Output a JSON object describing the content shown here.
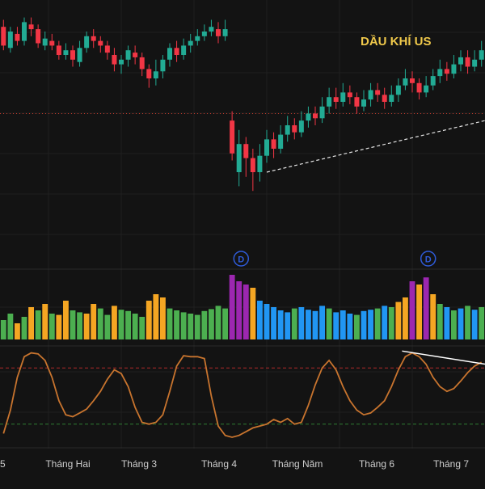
{
  "title": "DẦU KHÍ US",
  "colors": {
    "background": "#131313",
    "grid": "#1f1f1f",
    "up": "#22ab94",
    "down": "#f23645",
    "title": "#f0c94b",
    "axis_text": "#cfcfcf",
    "price_level": "#c0392b",
    "trendline": "#e6e6e6",
    "oscillator": "#c8742e",
    "osc_upper": "#b02a2a",
    "osc_lower": "#2e7d32",
    "osc_trend": "#ffffff",
    "vol_green": "#4caf50",
    "vol_orange": "#f5a623",
    "vol_blue": "#2196f3",
    "vol_purple": "#9c27b0",
    "dividend": "#2f5bd8"
  },
  "dividend_marker": "D",
  "x_axis_labels": [
    "5",
    "Tháng Hai",
    "Tháng 3",
    "Tháng 4",
    "Tháng Năm",
    "Tháng 6",
    "Tháng 7"
  ],
  "chart_data": {
    "type": "candlestick",
    "title": "DẦU KHÍ US",
    "price_ylim": [
      0,
      100
    ],
    "candles": [
      [
        92,
        84,
        95,
        82
      ],
      [
        83,
        90,
        92,
        81
      ],
      [
        89,
        86,
        92,
        84
      ],
      [
        86,
        94,
        96,
        84
      ],
      [
        93,
        91,
        96,
        88
      ],
      [
        91,
        85,
        93,
        83
      ],
      [
        84,
        87,
        90,
        82
      ],
      [
        86,
        84,
        89,
        82
      ],
      [
        84,
        80,
        86,
        78
      ],
      [
        80,
        82,
        85,
        78
      ],
      [
        82,
        78,
        84,
        75
      ],
      [
        77,
        83,
        86,
        75
      ],
      [
        83,
        88,
        90,
        81
      ],
      [
        88,
        86,
        91,
        83
      ],
      [
        86,
        84,
        88,
        81
      ],
      [
        84,
        81,
        86,
        78
      ],
      [
        80,
        76,
        83,
        73
      ],
      [
        76,
        78,
        80,
        72
      ],
      [
        78,
        82,
        84,
        75
      ],
      [
        81,
        79,
        84,
        76
      ],
      [
        79,
        74,
        81,
        71
      ],
      [
        74,
        70,
        76,
        66
      ],
      [
        70,
        73,
        78,
        67
      ],
      [
        73,
        78,
        80,
        70
      ],
      [
        78,
        83,
        85,
        75
      ],
      [
        83,
        80,
        86,
        77
      ],
      [
        80,
        84,
        87,
        78
      ],
      [
        84,
        86,
        89,
        81
      ],
      [
        86,
        88,
        91,
        84
      ],
      [
        88,
        90,
        93,
        86
      ],
      [
        90,
        92,
        95,
        88
      ],
      [
        91,
        88,
        94,
        85
      ],
      [
        88,
        91,
        95,
        86
      ],
      [
        52,
        38,
        56,
        35
      ],
      [
        30,
        42,
        48,
        24
      ],
      [
        42,
        36,
        45,
        28
      ],
      [
        36,
        30,
        40,
        22
      ],
      [
        30,
        37,
        42,
        26
      ],
      [
        37,
        44,
        48,
        34
      ],
      [
        44,
        40,
        47,
        36
      ],
      [
        40,
        46,
        50,
        38
      ],
      [
        46,
        50,
        54,
        43
      ],
      [
        50,
        47,
        53,
        44
      ],
      [
        47,
        52,
        56,
        45
      ],
      [
        52,
        55,
        58,
        49
      ],
      [
        55,
        53,
        58,
        50
      ],
      [
        53,
        58,
        62,
        51
      ],
      [
        58,
        62,
        66,
        55
      ],
      [
        62,
        60,
        66,
        57
      ],
      [
        60,
        64,
        68,
        58
      ],
      [
        64,
        62,
        67,
        59
      ],
      [
        62,
        58,
        64,
        55
      ],
      [
        58,
        61,
        65,
        56
      ],
      [
        61,
        65,
        68,
        58
      ],
      [
        65,
        63,
        68,
        60
      ],
      [
        63,
        60,
        66,
        57
      ],
      [
        60,
        63,
        67,
        58
      ],
      [
        63,
        67,
        70,
        60
      ],
      [
        67,
        70,
        74,
        65
      ],
      [
        70,
        68,
        73,
        64
      ],
      [
        68,
        64,
        70,
        61
      ],
      [
        64,
        67,
        71,
        62
      ],
      [
        67,
        71,
        74,
        65
      ],
      [
        71,
        74,
        78,
        68
      ],
      [
        74,
        72,
        77,
        69
      ],
      [
        72,
        76,
        80,
        70
      ],
      [
        76,
        79,
        82,
        73
      ],
      [
        79,
        75,
        82,
        72
      ],
      [
        75,
        78,
        82,
        73
      ],
      [
        78,
        82,
        86,
        75
      ]
    ],
    "price_level_line": 55,
    "volume": {
      "ylim": [
        0,
        100
      ],
      "bars": [
        [
          30,
          "g"
        ],
        [
          40,
          "g"
        ],
        [
          25,
          "o"
        ],
        [
          35,
          "g"
        ],
        [
          50,
          "o"
        ],
        [
          45,
          "g"
        ],
        [
          55,
          "o"
        ],
        [
          40,
          "g"
        ],
        [
          38,
          "o"
        ],
        [
          60,
          "o"
        ],
        [
          45,
          "g"
        ],
        [
          42,
          "g"
        ],
        [
          40,
          "o"
        ],
        [
          55,
          "o"
        ],
        [
          48,
          "g"
        ],
        [
          38,
          "g"
        ],
        [
          52,
          "o"
        ],
        [
          46,
          "g"
        ],
        [
          44,
          "g"
        ],
        [
          40,
          "g"
        ],
        [
          35,
          "g"
        ],
        [
          60,
          "o"
        ],
        [
          70,
          "o"
        ],
        [
          65,
          "o"
        ],
        [
          48,
          "g"
        ],
        [
          45,
          "g"
        ],
        [
          42,
          "g"
        ],
        [
          40,
          "g"
        ],
        [
          38,
          "g"
        ],
        [
          44,
          "g"
        ],
        [
          47,
          "g"
        ],
        [
          52,
          "g"
        ],
        [
          48,
          "g"
        ],
        [
          100,
          "p"
        ],
        [
          90,
          "p"
        ],
        [
          85,
          "p"
        ],
        [
          80,
          "o"
        ],
        [
          60,
          "b"
        ],
        [
          55,
          "b"
        ],
        [
          50,
          "b"
        ],
        [
          45,
          "b"
        ],
        [
          42,
          "b"
        ],
        [
          48,
          "g"
        ],
        [
          50,
          "b"
        ],
        [
          46,
          "b"
        ],
        [
          44,
          "b"
        ],
        [
          52,
          "b"
        ],
        [
          48,
          "g"
        ],
        [
          42,
          "b"
        ],
        [
          45,
          "b"
        ],
        [
          40,
          "b"
        ],
        [
          38,
          "g"
        ],
        [
          44,
          "b"
        ],
        [
          46,
          "b"
        ],
        [
          48,
          "g"
        ],
        [
          52,
          "b"
        ],
        [
          50,
          "g"
        ],
        [
          58,
          "o"
        ],
        [
          65,
          "o"
        ],
        [
          90,
          "p"
        ],
        [
          85,
          "o"
        ],
        [
          96,
          "p"
        ],
        [
          70,
          "o"
        ],
        [
          55,
          "g"
        ],
        [
          50,
          "b"
        ],
        [
          45,
          "g"
        ],
        [
          48,
          "b"
        ],
        [
          52,
          "g"
        ],
        [
          46,
          "b"
        ],
        [
          50,
          "g"
        ]
      ]
    },
    "oscillator": {
      "ylim": [
        0,
        100
      ],
      "upper_level": 80,
      "lower_level": 20,
      "values": [
        10,
        35,
        70,
        92,
        96,
        95,
        88,
        70,
        45,
        30,
        28,
        32,
        36,
        45,
        55,
        68,
        78,
        74,
        60,
        38,
        22,
        20,
        22,
        30,
        55,
        82,
        93,
        92,
        92,
        90,
        50,
        18,
        8,
        6,
        8,
        12,
        16,
        18,
        20,
        25,
        22,
        26,
        20,
        22,
        40,
        62,
        80,
        88,
        78,
        60,
        45,
        35,
        30,
        32,
        38,
        45,
        60,
        78,
        92,
        96,
        92,
        84,
        70,
        60,
        55,
        58,
        66,
        75,
        82,
        86
      ],
      "trend_end": [
        70,
        84
      ]
    }
  }
}
